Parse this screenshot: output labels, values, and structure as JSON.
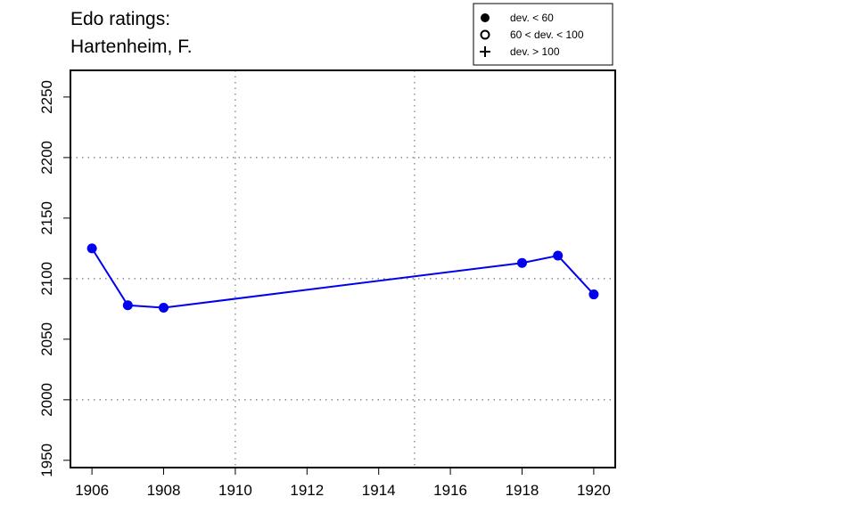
{
  "chart_data": {
    "type": "line",
    "title_lines": [
      "Edo ratings:",
      "Hartenheim, F."
    ],
    "xlabel": "",
    "ylabel": "",
    "x": [
      1906,
      1907,
      1908,
      1918,
      1919,
      1920
    ],
    "series": [
      {
        "values": [
          2125,
          2078,
          2076,
          2113,
          2119,
          2087
        ],
        "color": "#0000ee",
        "marker": "filled-circle"
      }
    ],
    "xlim": [
      1905.4,
      1920.6
    ],
    "ylim": [
      1944,
      2272
    ],
    "x_ticks": [
      1906,
      1908,
      1910,
      1912,
      1914,
      1916,
      1918,
      1920
    ],
    "y_ticks": [
      1950,
      2000,
      2050,
      2100,
      2150,
      2200,
      2250
    ],
    "x_grid": [
      1910,
      1915
    ],
    "y_grid": [
      2000,
      2100,
      2200
    ],
    "grid": true,
    "legend": {
      "placement": "top-right",
      "entries": [
        {
          "marker": "filled-circle",
          "label": "dev. < 60"
        },
        {
          "marker": "open-circle",
          "label": "60 < dev. < 100"
        },
        {
          "marker": "plus",
          "label": "dev. > 100"
        }
      ]
    }
  }
}
